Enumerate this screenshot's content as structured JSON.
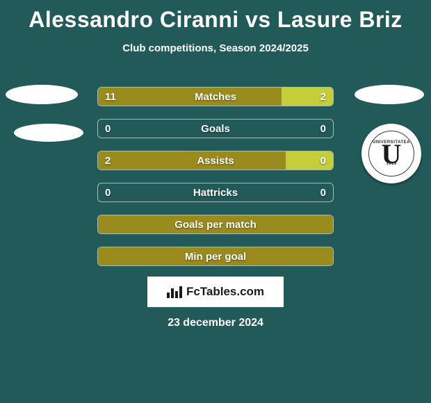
{
  "title": "Alessandro Ciranni vs Lasure Briz",
  "subtitle": "Club competitions, Season 2024/2025",
  "colors": {
    "background": "#225a5a",
    "left_fill": "#9a8b1e",
    "right_fill": "#c4cd3a",
    "full_fill": "#9a8b1e",
    "text": "#ffffff"
  },
  "rows": [
    {
      "label": "Matches",
      "left": "11",
      "right": "2",
      "left_pct": 78,
      "right_pct": 22,
      "type": "split"
    },
    {
      "label": "Goals",
      "left": "0",
      "right": "0",
      "type": "empty"
    },
    {
      "label": "Assists",
      "left": "2",
      "right": "0",
      "left_pct": 80,
      "right_pct": 20,
      "type": "split"
    },
    {
      "label": "Hattricks",
      "left": "0",
      "right": "0",
      "type": "empty"
    },
    {
      "label": "Goals per match",
      "type": "full"
    },
    {
      "label": "Min per goal",
      "type": "full"
    }
  ],
  "badge": {
    "top_text": "UNIVERSITATEA",
    "letter": "U",
    "bottom_text": "1919",
    "alt": "F.C. Universitatea Cluj"
  },
  "branding": {
    "text": "FcTables.com"
  },
  "date": "23 december 2024"
}
